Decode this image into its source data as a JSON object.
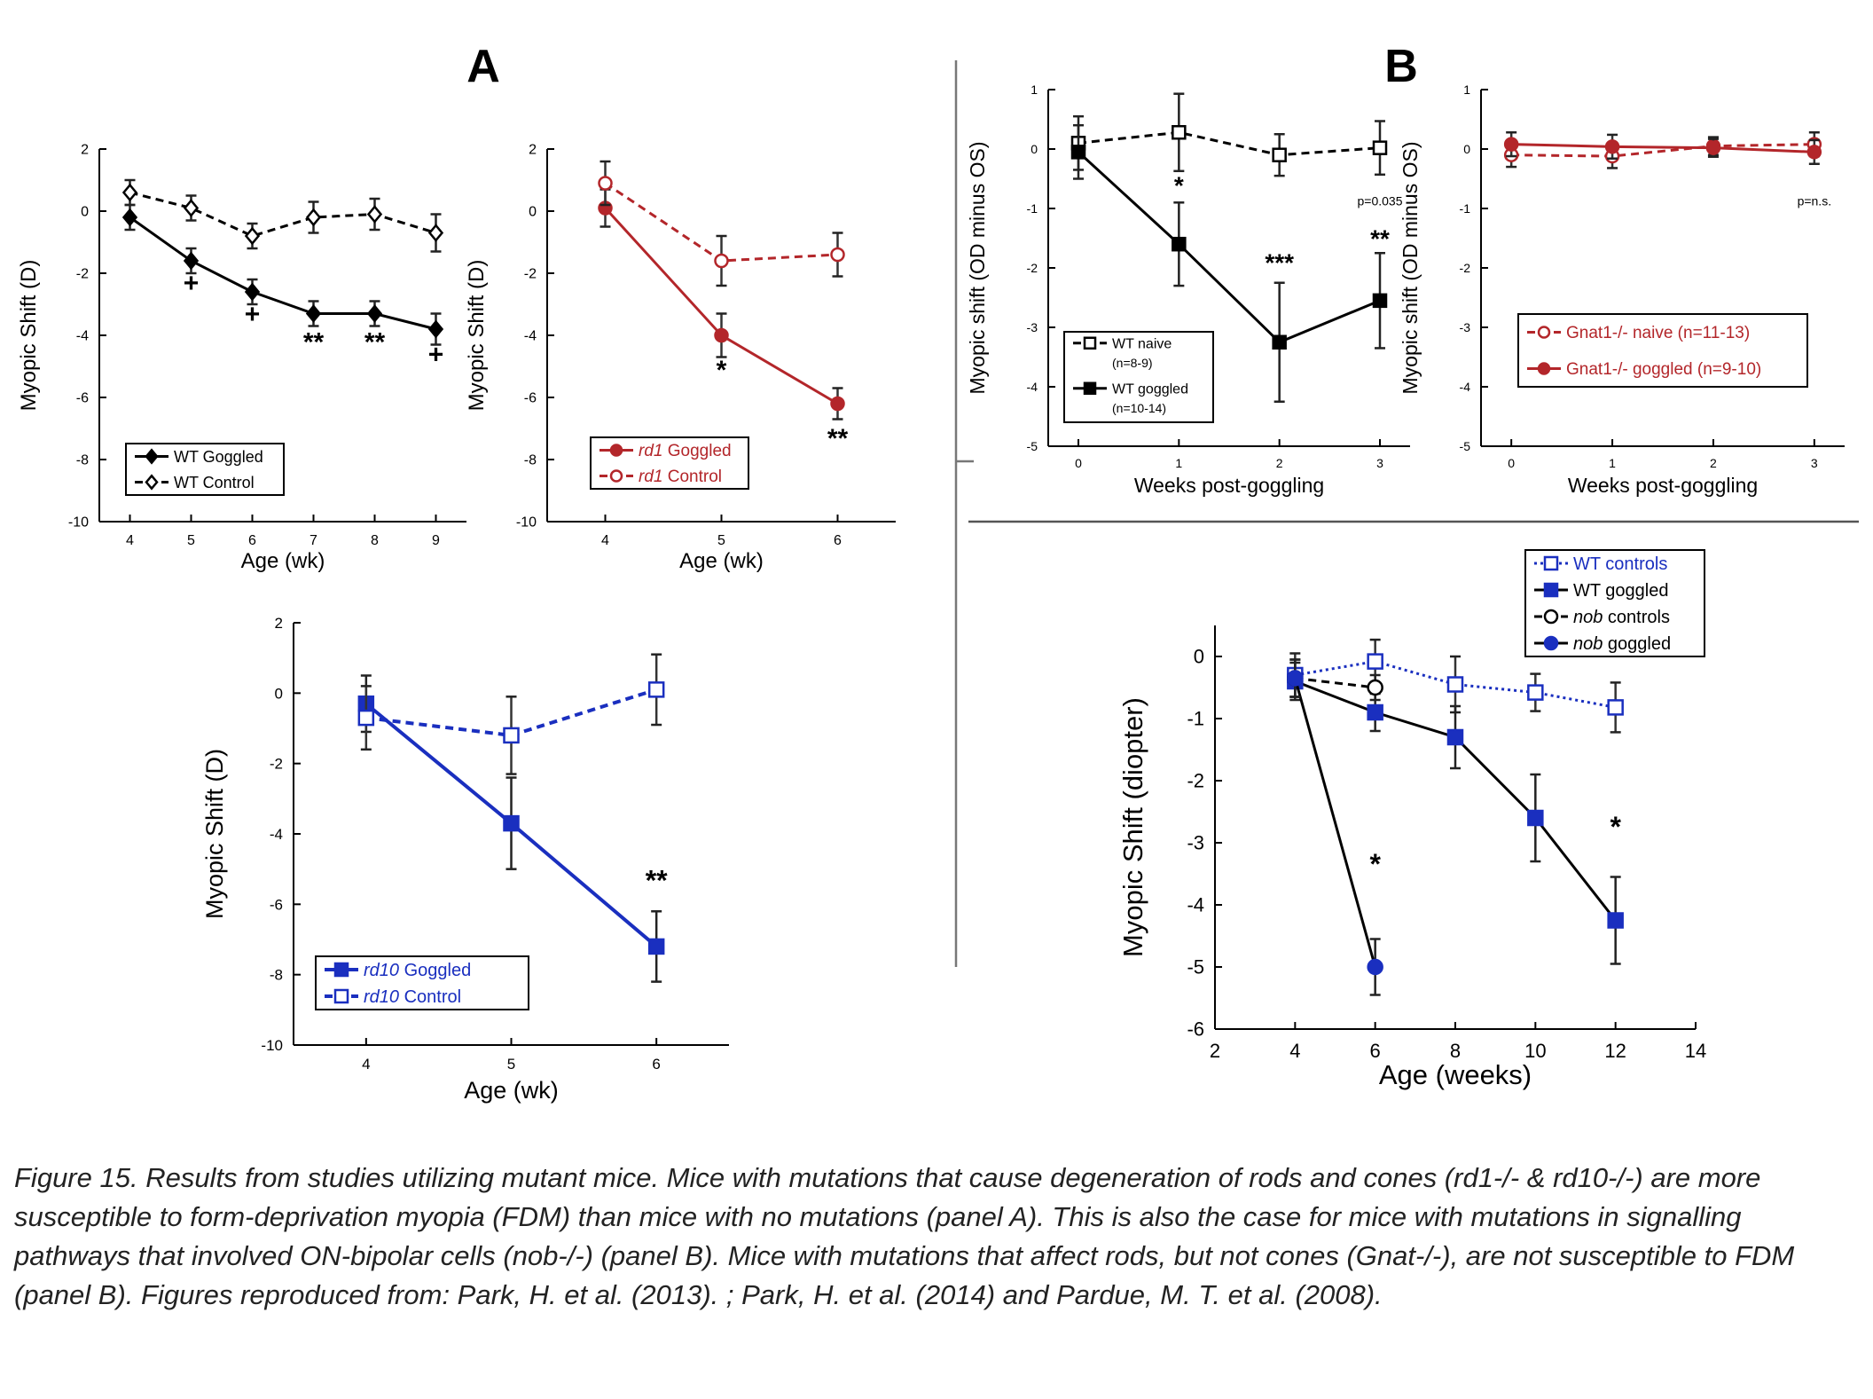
{
  "panel_labels": {
    "a": "A",
    "b": "B"
  },
  "colors": {
    "black": "#000000",
    "red": "#b3262a",
    "blue": "#1a2fbf"
  },
  "caption": "Figure 15. Results from studies utilizing mutant mice. Mice with mutations that cause degeneration of rods and cones (rd1-/- & rd10-/-) are more susceptible to form-deprivation myopia (FDM) than mice with no mutations (panel A). This is also the case for mice with mutations in signalling pathways that involved ON-bipolar cells (nob-/-) (panel B). Mice with mutations that affect rods, but not cones (Gnat-/-), are not susceptible to FDM (panel B). Figures reproduced from: Park, H. et al. (2013). ; Park, H. et al. (2014) and Pardue, M. T. et al. (2008).",
  "chart_data": [
    {
      "id": "wt",
      "type": "line",
      "xlabel": "Age (wk)",
      "ylabel": "Myopic Shift (D)",
      "xlim": [
        3.5,
        9.5
      ],
      "ylim": [
        -10,
        2
      ],
      "xticks": [
        4,
        5,
        6,
        7,
        8,
        9
      ],
      "yticks": [
        2,
        0,
        -2,
        -4,
        -6,
        -8,
        -10
      ],
      "xtick_labels": [
        "4",
        "5",
        "6",
        "7",
        "8",
        "9"
      ],
      "ytick_labels": [
        "2",
        "0",
        "-2",
        "-4",
        "-6",
        "-8",
        "-10"
      ],
      "legend_position": "bottom-left",
      "series": [
        {
          "name": "WT Goggled",
          "color": "#000000",
          "dash": false,
          "marker": "diamond",
          "filled": true,
          "x": [
            4,
            5,
            6,
            7,
            8,
            9
          ],
          "y": [
            -0.2,
            -1.6,
            -2.6,
            -3.3,
            -3.3,
            -3.8
          ],
          "err": [
            0.4,
            0.4,
            0.4,
            0.4,
            0.4,
            0.5
          ]
        },
        {
          "name": "WT Control",
          "color": "#000000",
          "dash": true,
          "marker": "diamond",
          "filled": false,
          "x": [
            4,
            5,
            6,
            7,
            8,
            9
          ],
          "y": [
            0.6,
            0.1,
            -0.8,
            -0.2,
            -0.1,
            -0.7
          ],
          "err": [
            0.4,
            0.4,
            0.4,
            0.5,
            0.5,
            0.6
          ]
        }
      ],
      "annotations": [
        {
          "x": 5,
          "y": -2.6,
          "text": "+"
        },
        {
          "x": 6,
          "y": -3.6,
          "text": "+"
        },
        {
          "x": 7,
          "y": -4.5,
          "text": "**"
        },
        {
          "x": 8,
          "y": -4.5,
          "text": "**"
        },
        {
          "x": 9,
          "y": -4.9,
          "text": "+"
        }
      ]
    },
    {
      "id": "rd1",
      "type": "line",
      "xlabel": "Age (wk)",
      "ylabel": "Myopic Shift (D)",
      "xlim": [
        3.5,
        6.5
      ],
      "ylim": [
        -10,
        2
      ],
      "xticks": [
        4,
        5,
        6
      ],
      "yticks": [
        2,
        0,
        -2,
        -4,
        -6,
        -8,
        -10
      ],
      "xtick_labels": [
        "4",
        "5",
        "6"
      ],
      "ytick_labels": [
        "2",
        "0",
        "-2",
        "-4",
        "-6",
        "-8",
        "-10"
      ],
      "legend_position": "bottom-left",
      "series": [
        {
          "name": "rd1 Goggled",
          "color": "#b3262a",
          "dash": false,
          "marker": "circle",
          "filled": true,
          "x": [
            4,
            5,
            6
          ],
          "y": [
            0.1,
            -4.0,
            -6.2
          ],
          "err": [
            0.6,
            0.7,
            0.5
          ]
        },
        {
          "name": "rd1 Control",
          "color": "#b3262a",
          "dash": true,
          "marker": "circle",
          "filled": false,
          "x": [
            4,
            5,
            6
          ],
          "y": [
            0.9,
            -1.6,
            -1.4
          ],
          "err": [
            0.7,
            0.8,
            0.7
          ]
        }
      ],
      "annotations": [
        {
          "x": 5,
          "y": -5.4,
          "text": "*"
        },
        {
          "x": 6,
          "y": -7.6,
          "text": "**"
        }
      ]
    },
    {
      "id": "rd10",
      "type": "line",
      "xlabel": "Age (wk)",
      "ylabel": "Myopic Shift (D)",
      "xlim": [
        3.5,
        6.5
      ],
      "ylim": [
        -10,
        2
      ],
      "xticks": [
        4,
        5,
        6
      ],
      "yticks": [
        2,
        0,
        -2,
        -4,
        -6,
        -8,
        -10
      ],
      "xtick_labels": [
        "4",
        "5",
        "6"
      ],
      "ytick_labels": [
        "2",
        "0",
        "-2",
        "-4",
        "-6",
        "-8",
        "-10"
      ],
      "legend_position": "bottom-left",
      "series": [
        {
          "name": "rd10 Goggled",
          "color": "#1a2fbf",
          "dash": false,
          "marker": "square",
          "filled": true,
          "x": [
            4,
            5,
            6
          ],
          "y": [
            -0.3,
            -3.7,
            -7.2
          ],
          "err": [
            0.8,
            1.3,
            1.0
          ]
        },
        {
          "name": "rd10 Control",
          "color": "#1a2fbf",
          "dash": true,
          "marker": "square",
          "filled": false,
          "x": [
            4,
            5,
            6
          ],
          "y": [
            -0.7,
            -1.2,
            0.1
          ],
          "err": [
            0.9,
            1.1,
            1.0
          ]
        }
      ],
      "annotations": [
        {
          "x": 6,
          "y": -5.6,
          "text": "**"
        }
      ]
    },
    {
      "id": "wt-naive",
      "type": "line",
      "xlabel": "Weeks post-goggling",
      "ylabel": "Myopic shift (OD minus OS)",
      "xlim": [
        -0.3,
        3.3
      ],
      "ylim": [
        -5,
        1
      ],
      "xticks": [
        0,
        1,
        2,
        3
      ],
      "yticks": [
        1,
        0,
        -1,
        -2,
        -3,
        -4,
        -5
      ],
      "xtick_labels": [
        "0",
        "1",
        "2",
        "3"
      ],
      "ytick_labels": [
        "1",
        "0",
        "-1",
        "-2",
        "-3",
        "-4",
        "-5"
      ],
      "legend_position": "bottom-left",
      "series": [
        {
          "name": "WT naive",
          "subtitle": "(n=8-9)",
          "color": "#000000",
          "dash": true,
          "marker": "square",
          "filled": false,
          "x": [
            0,
            1,
            2,
            3
          ],
          "y": [
            0.1,
            0.28,
            -0.1,
            0.02
          ],
          "err": [
            0.45,
            0.65,
            0.35,
            0.45
          ]
        },
        {
          "name": "WT goggled",
          "subtitle": "(n=10-14)",
          "color": "#000000",
          "dash": false,
          "marker": "square",
          "filled": true,
          "x": [
            0,
            1,
            2,
            3
          ],
          "y": [
            -0.05,
            -1.6,
            -3.25,
            -2.55
          ],
          "err": [
            0.45,
            0.7,
            1.0,
            0.8
          ]
        }
      ],
      "annotations": [
        {
          "x": 1,
          "y": -0.75,
          "text": "*"
        },
        {
          "x": 2,
          "y": -2.05,
          "text": "***"
        },
        {
          "x": 3,
          "y": -1.65,
          "text": "**"
        },
        {
          "x": 3,
          "y": -0.95,
          "text": "p=0.035",
          "small": true
        }
      ]
    },
    {
      "id": "gnat1",
      "type": "line",
      "xlabel": "Weeks post-goggling",
      "ylabel": "Myopic shift (OD minus OS)",
      "xlim": [
        -0.3,
        3.3
      ],
      "ylim": [
        -5,
        1
      ],
      "xticks": [
        0,
        1,
        2,
        3
      ],
      "yticks": [
        1,
        0,
        -1,
        -2,
        -3,
        -4,
        -5
      ],
      "xtick_labels": [
        "0",
        "1",
        "2",
        "3"
      ],
      "ytick_labels": [
        "1",
        "0",
        "-1",
        "-2",
        "-3",
        "-4",
        "-5"
      ],
      "legend_position": "bottom-left",
      "series": [
        {
          "name": "Gnat1-/- naive (n=11-13)",
          "color": "#b3262a",
          "dash": true,
          "marker": "circle",
          "filled": false,
          "x": [
            0,
            1,
            2,
            3
          ],
          "y": [
            -0.1,
            -0.12,
            0.05,
            0.08
          ],
          "err": [
            0.2,
            0.2,
            0.15,
            0.2
          ]
        },
        {
          "name": "Gnat1-/- goggled (n=9-10)",
          "color": "#b3262a",
          "dash": false,
          "marker": "circle",
          "filled": true,
          "x": [
            0,
            1,
            2,
            3
          ],
          "y": [
            0.08,
            0.04,
            0.02,
            -0.05
          ],
          "err": [
            0.2,
            0.2,
            0.15,
            0.2
          ]
        }
      ],
      "annotations": [
        {
          "x": 3,
          "y": -0.95,
          "text": "p=n.s.",
          "small": true
        }
      ]
    },
    {
      "id": "nob",
      "type": "line",
      "xlabel": "Age (weeks)",
      "ylabel": "Myopic Shift (diopter)",
      "xlim": [
        2,
        14
      ],
      "ylim": [
        -6,
        0.5
      ],
      "xticks": [
        2,
        4,
        6,
        8,
        10,
        12,
        14
      ],
      "yticks": [
        0,
        -1,
        -2,
        -3,
        -4,
        -5,
        -6
      ],
      "xtick_labels": [
        "2",
        "4",
        "6",
        "8",
        "10",
        "12",
        "14"
      ],
      "ytick_labels": [
        "0",
        "-1",
        "-2",
        "-3",
        "-4",
        "-5",
        "-6"
      ],
      "legend_position": "top-right",
      "series": [
        {
          "name": "WT controls",
          "color": "#1a2fbf",
          "dash": "dot",
          "marker": "square",
          "filled": false,
          "x": [
            4,
            6,
            8,
            10,
            12
          ],
          "y": [
            -0.3,
            -0.08,
            -0.45,
            -0.58,
            -0.82
          ],
          "err": [
            0.35,
            0.35,
            0.45,
            0.3,
            0.4
          ]
        },
        {
          "name": "WT goggled",
          "color": "#000000",
          "dash": false,
          "marker": "square",
          "filled": true,
          "markerColor": "#1a2fbf",
          "x": [
            4,
            6,
            8,
            10,
            12
          ],
          "y": [
            -0.4,
            -0.9,
            -1.3,
            -2.6,
            -4.25
          ],
          "err": [
            0.3,
            0.3,
            0.5,
            0.7,
            0.7
          ]
        },
        {
          "name": "nob controls",
          "color": "#000000",
          "dash": true,
          "marker": "circle",
          "filled": false,
          "x": [
            4,
            6
          ],
          "y": [
            -0.35,
            -0.5
          ],
          "err": [
            0.3,
            0.2
          ]
        },
        {
          "name": "nob goggled",
          "color": "#000000",
          "dash": false,
          "marker": "circle",
          "filled": true,
          "markerColor": "#1a2fbf",
          "x": [
            4,
            6
          ],
          "y": [
            -0.35,
            -5.0
          ],
          "err": [
            0.3,
            0.45
          ]
        }
      ],
      "annotations": [
        {
          "x": 6,
          "y": -3.5,
          "text": "*"
        },
        {
          "x": 12,
          "y": -2.9,
          "text": "*"
        }
      ]
    }
  ]
}
